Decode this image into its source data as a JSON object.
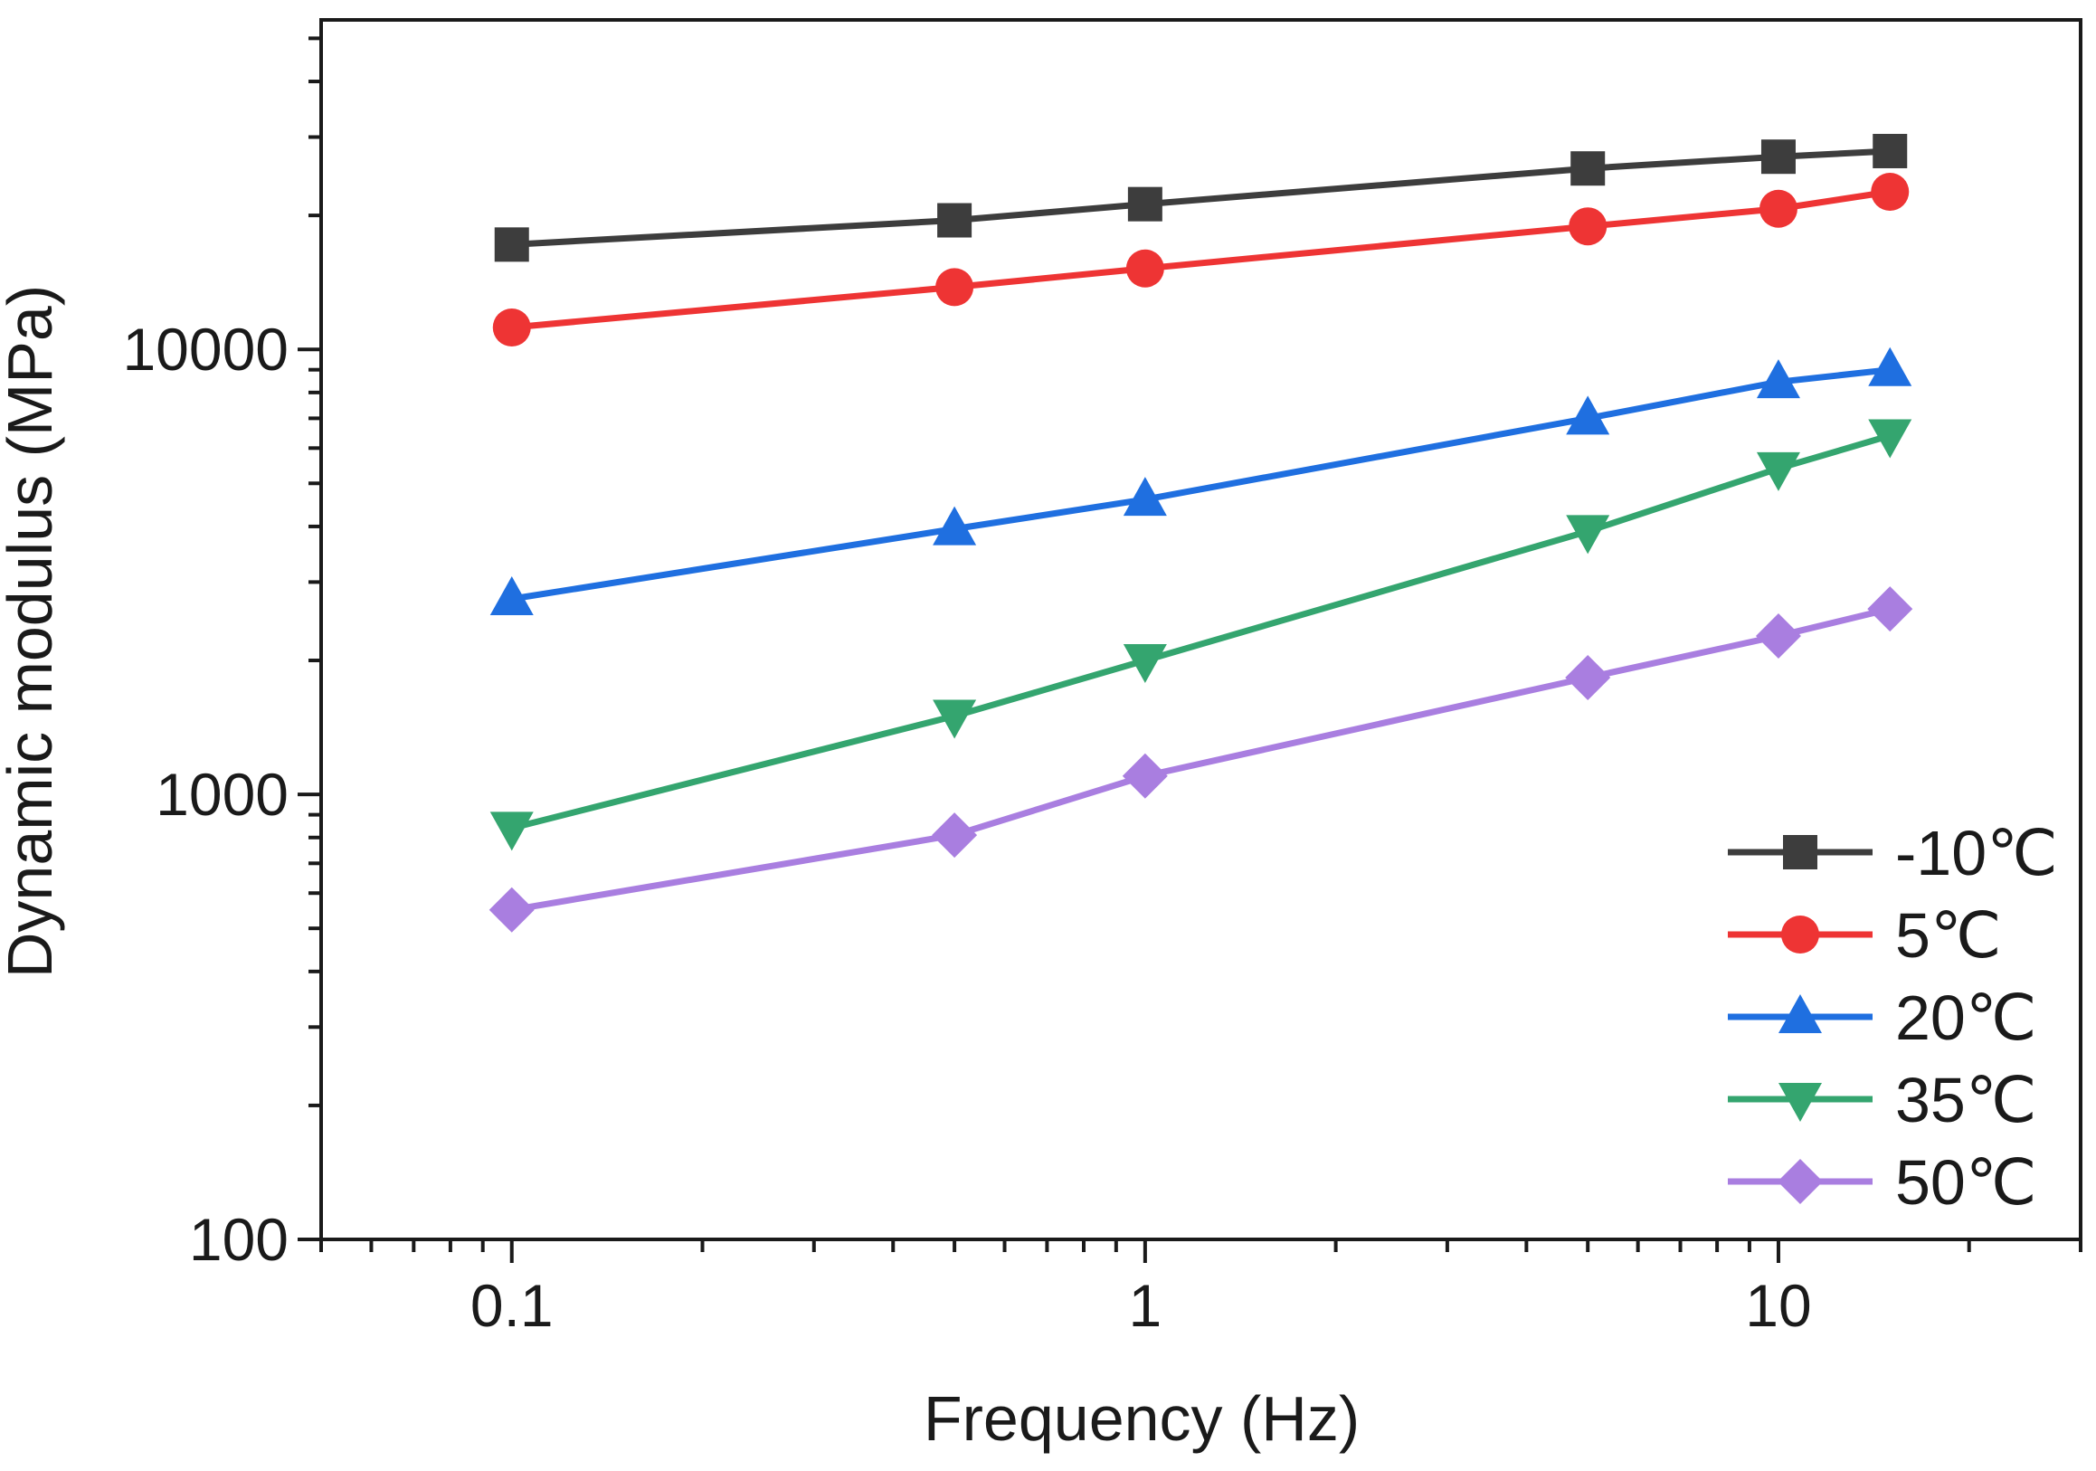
{
  "chart_data": {
    "type": "line",
    "title": "",
    "xlabel": "Frequency (Hz)",
    "ylabel": "Dynamic modulus (MPa)",
    "xscale": "log",
    "yscale": "log",
    "xlim": [
      0.05,
      30
    ],
    "ylim": [
      100,
      55000
    ],
    "xticks": [
      {
        "value": 0.1,
        "label": "0.1"
      },
      {
        "value": 1,
        "label": "1"
      },
      {
        "value": 10,
        "label": "10"
      }
    ],
    "yticks": [
      {
        "value": 100,
        "label": "100"
      },
      {
        "value": 1000,
        "label": "1000"
      },
      {
        "value": 10000,
        "label": "10000"
      }
    ],
    "grid": false,
    "legend_position": "bottom-right",
    "x": [
      0.1,
      0.5,
      1,
      5,
      10,
      15
    ],
    "series": [
      {
        "name": "-10℃",
        "color": "#3d3d3d",
        "marker": "square",
        "values": [
          17200,
          19500,
          21200,
          25500,
          27100,
          27900
        ]
      },
      {
        "name": "5℃",
        "color": "#ee3434",
        "marker": "circle",
        "values": [
          11200,
          13800,
          15200,
          18900,
          20700,
          22600
        ]
      },
      {
        "name": "20℃",
        "color": "#1f6fe0",
        "marker": "triangle-up",
        "values": [
          2750,
          3950,
          4600,
          7000,
          8450,
          9000
        ]
      },
      {
        "name": "35℃",
        "color": "#34a56f",
        "marker": "triangle-down",
        "values": [
          840,
          1500,
          2000,
          3900,
          5400,
          6400
        ]
      },
      {
        "name": "50℃",
        "color": "#a97ee0",
        "marker": "diamond",
        "values": [
          550,
          810,
          1100,
          1830,
          2270,
          2610
        ]
      }
    ]
  }
}
